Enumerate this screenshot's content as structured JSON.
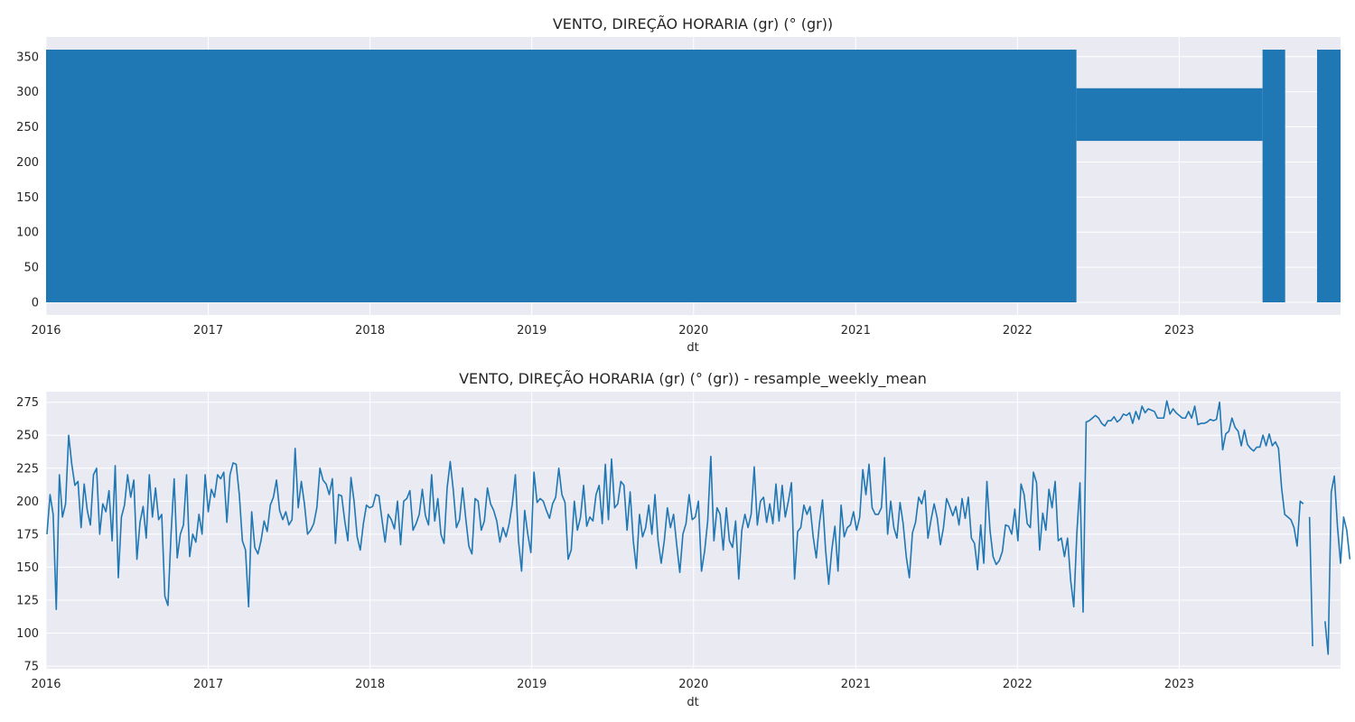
{
  "chart_data": [
    {
      "type": "line",
      "title": "VENTO, DIREÇÃO HORARIA (gr) (° (gr))",
      "xlabel": "dt",
      "ylabel": "",
      "x_ticks": [
        "2016",
        "2017",
        "2018",
        "2019",
        "2020",
        "2021",
        "2022",
        "2023"
      ],
      "y_ticks": [
        0,
        50,
        100,
        150,
        200,
        250,
        300,
        350
      ],
      "xlim": [
        "2016-01-01",
        "2023-12-31"
      ],
      "ylim": [
        -18,
        378
      ],
      "grid": true,
      "color": "#1f77b4",
      "series": [
        {
          "envelope": [
            {
              "start": "2016-01-01",
              "end": "2022-05-14",
              "min": 0,
              "max": 360
            },
            {
              "start": "2022-05-14",
              "end": "2023-07-08",
              "min": 230,
              "max": 305
            },
            {
              "start": "2023-07-08",
              "end": "2023-08-28",
              "min": 0,
              "max": 360
            },
            {
              "start": "2023-11-08",
              "end": "2023-12-31",
              "min": 0,
              "max": 360
            }
          ]
        }
      ]
    },
    {
      "type": "line",
      "title": "VENTO, DIREÇÃO HORARIA (gr) (° (gr)) - resample_weekly_mean",
      "xlabel": "dt",
      "ylabel": "",
      "x_ticks": [
        "2016",
        "2017",
        "2018",
        "2019",
        "2020",
        "2021",
        "2022",
        "2023"
      ],
      "y_ticks": [
        75,
        100,
        125,
        150,
        175,
        200,
        225,
        250,
        275
      ],
      "xlim": [
        "2016-01-01",
        "2023-12-31"
      ],
      "ylim": [
        73,
        283
      ],
      "grid": true,
      "color": "#1f77b4",
      "series": [
        {
          "start": "2016-01-03",
          "freq_days": 7,
          "values": [
            175,
            205,
            190,
            118,
            220,
            188,
            198,
            250,
            228,
            212,
            215,
            180,
            213,
            193,
            182,
            220,
            225,
            175,
            198,
            192,
            208,
            170,
            227,
            142,
            188,
            197,
            220,
            203,
            216,
            156,
            184,
            196,
            172,
            220,
            188,
            210,
            186,
            190,
            128,
            121,
            175,
            217,
            157,
            175,
            182,
            220,
            158,
            175,
            169,
            190,
            175,
            220,
            192,
            209,
            203,
            220,
            217,
            222,
            184,
            220,
            229,
            228,
            205,
            170,
            163,
            120,
            192,
            165,
            160,
            170,
            185,
            177,
            197,
            203,
            216,
            193,
            186,
            192,
            182,
            186,
            240,
            195,
            215,
            198,
            175,
            178,
            183,
            195,
            225,
            216,
            213,
            205,
            217,
            168,
            205,
            204,
            185,
            170,
            218,
            200,
            173,
            163,
            183,
            197,
            195,
            196,
            205,
            204,
            186,
            169,
            190,
            186,
            179,
            200,
            167,
            200,
            202,
            208,
            178,
            183,
            190,
            209,
            189,
            182,
            220,
            185,
            202,
            175,
            168,
            210,
            230,
            208,
            180,
            186,
            210,
            187,
            166,
            160,
            202,
            200,
            178,
            185,
            210,
            198,
            193,
            185,
            169,
            180,
            173,
            183,
            198,
            220,
            170,
            147,
            193,
            175,
            161,
            222,
            199,
            202,
            200,
            193,
            187,
            198,
            203,
            225,
            205,
            199,
            156,
            163,
            200,
            178,
            188,
            212,
            181,
            188,
            185,
            205,
            212,
            183,
            228,
            186,
            232,
            195,
            198,
            215,
            212,
            178,
            207,
            170,
            149,
            190,
            173,
            180,
            197,
            175,
            205,
            170,
            153,
            170,
            195,
            180,
            190,
            167,
            146,
            175,
            183,
            205,
            186,
            188,
            200,
            147,
            162,
            185,
            234,
            170,
            195,
            190,
            163,
            195,
            170,
            165,
            185,
            141,
            178,
            190,
            180,
            190,
            226,
            182,
            200,
            203,
            184,
            198,
            183,
            213,
            185,
            212,
            188,
            200,
            214,
            141,
            177,
            180,
            197,
            190,
            196,
            173,
            157,
            183,
            201,
            163,
            137,
            163,
            181,
            147,
            197,
            173,
            180,
            182,
            192,
            178,
            188,
            224,
            205,
            228,
            195,
            190,
            190,
            195,
            233,
            175,
            200,
            180,
            172,
            199,
            183,
            158,
            142,
            176,
            184,
            203,
            198,
            208,
            172,
            186,
            198,
            187,
            167,
            180,
            202,
            196,
            189,
            196,
            182,
            202,
            187,
            203,
            172,
            168,
            148,
            182,
            153,
            215,
            178,
            158,
            152,
            155,
            162,
            182,
            181,
            175,
            194,
            170,
            213,
            205,
            183,
            180,
            222,
            214,
            163,
            191,
            178,
            209,
            195,
            215,
            170,
            172,
            158,
            172,
            140,
            120,
            176,
            214,
            116,
            260,
            261,
            263,
            265,
            263,
            259,
            257,
            261,
            261,
            264,
            260,
            262,
            266,
            265,
            267,
            259,
            268,
            262,
            272,
            267,
            270,
            269,
            268,
            263,
            263,
            263,
            276,
            266,
            270,
            267,
            265,
            263,
            263,
            268,
            263,
            272,
            258,
            259,
            259,
            260,
            262,
            261,
            262,
            275,
            239,
            251,
            253,
            263,
            256,
            253,
            242,
            254,
            243,
            240,
            238,
            241,
            241,
            250,
            242,
            251,
            242,
            245,
            240,
            210,
            190,
            188,
            186,
            180,
            166,
            200,
            198,
            null,
            188,
            90,
            null,
            null,
            null,
            109,
            84,
            207,
            219,
            181,
            153,
            188,
            178,
            156
          ]
        }
      ]
    }
  ]
}
